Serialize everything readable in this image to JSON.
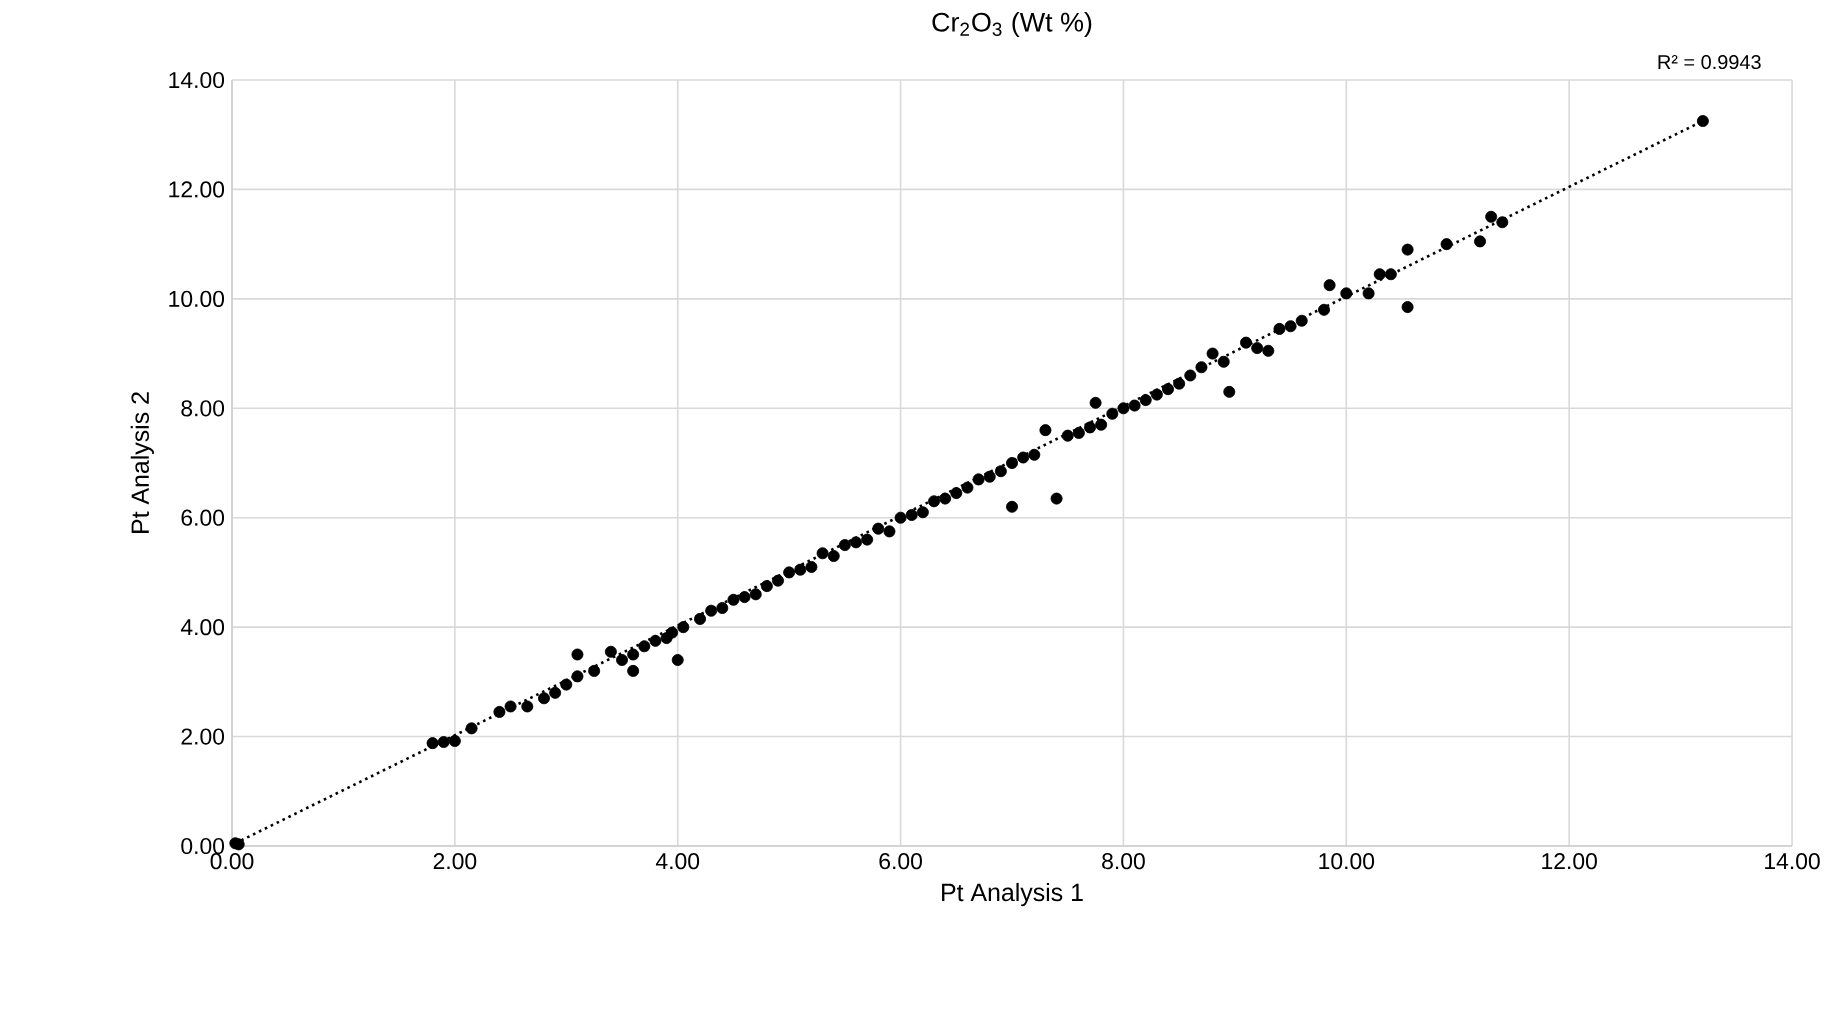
{
  "chart_data": {
    "type": "scatter",
    "title": "Cr$_{2}$O$_{3}$  (Wt %)",
    "xlabel": "Pt Analysis 1",
    "ylabel": "Pt Analysis 2",
    "annotations": [
      "R² = 0.9943"
    ],
    "xlim": [
      0,
      14
    ],
    "ylim": [
      0,
      14
    ],
    "xticks": [
      {
        "value": 0,
        "label": "0.00"
      },
      {
        "value": 2,
        "label": "2.00"
      },
      {
        "value": 4,
        "label": "4.00"
      },
      {
        "value": 6,
        "label": "6.00"
      },
      {
        "value": 8,
        "label": "8.00"
      },
      {
        "value": 10,
        "label": "10.00"
      },
      {
        "value": 12,
        "label": "12.00"
      },
      {
        "value": 14,
        "label": "14.00"
      }
    ],
    "yticks": [
      {
        "value": 0,
        "label": "0.00"
      },
      {
        "value": 2,
        "label": "2.00"
      },
      {
        "value": 4,
        "label": "4.00"
      },
      {
        "value": 6,
        "label": "6.00"
      },
      {
        "value": 8,
        "label": "8.00"
      },
      {
        "value": 10,
        "label": "10.00"
      },
      {
        "value": 12,
        "label": "12.00"
      },
      {
        "value": 14,
        "label": "14.00"
      }
    ],
    "grid": true,
    "series": [
      {
        "color": "#000000",
        "marker": "circle",
        "x": [
          0.03,
          0.06,
          1.8,
          1.9,
          2.0,
          2.15,
          2.4,
          2.5,
          2.65,
          2.8,
          2.9,
          3.0,
          3.1,
          3.1,
          3.25,
          3.4,
          3.5,
          3.6,
          3.6,
          3.7,
          3.8,
          3.9,
          3.95,
          4.0,
          4.05,
          4.2,
          4.3,
          4.4,
          4.5,
          4.6,
          4.7,
          4.8,
          4.9,
          5.0,
          5.1,
          5.2,
          5.3,
          5.4,
          5.5,
          5.6,
          5.7,
          5.8,
          5.9,
          6.0,
          6.1,
          6.2,
          6.3,
          6.4,
          6.5,
          6.6,
          6.7,
          6.8,
          6.9,
          7.0,
          7.0,
          7.1,
          7.2,
          7.3,
          7.4,
          7.5,
          7.6,
          7.7,
          7.75,
          7.8,
          7.9,
          8.0,
          8.1,
          8.2,
          8.3,
          8.4,
          8.5,
          8.6,
          8.7,
          8.8,
          8.9,
          8.95,
          9.1,
          9.2,
          9.3,
          9.4,
          9.5,
          9.6,
          9.8,
          9.85,
          10.0,
          10.2,
          10.3,
          10.4,
          10.55,
          10.55,
          10.9,
          11.2,
          11.3,
          11.4,
          13.2
        ],
        "values": [
          0.05,
          0.03,
          1.88,
          1.9,
          1.92,
          2.15,
          2.45,
          2.55,
          2.55,
          2.7,
          2.8,
          2.95,
          3.1,
          3.5,
          3.2,
          3.55,
          3.4,
          3.5,
          3.2,
          3.65,
          3.75,
          3.8,
          3.9,
          3.4,
          4.0,
          4.15,
          4.3,
          4.35,
          4.5,
          4.55,
          4.6,
          4.75,
          4.85,
          5.0,
          5.05,
          5.1,
          5.35,
          5.3,
          5.5,
          5.55,
          5.6,
          5.8,
          5.75,
          6.0,
          6.05,
          6.1,
          6.3,
          6.35,
          6.45,
          6.55,
          6.7,
          6.75,
          6.85,
          7.0,
          6.2,
          7.1,
          7.15,
          7.6,
          6.35,
          7.5,
          7.55,
          7.65,
          8.1,
          7.7,
          7.9,
          8.0,
          8.05,
          8.15,
          8.25,
          8.35,
          8.45,
          8.6,
          8.75,
          9.0,
          8.85,
          8.3,
          9.2,
          9.1,
          9.05,
          9.45,
          9.5,
          9.6,
          9.8,
          10.25,
          10.1,
          10.1,
          10.45,
          10.45,
          9.85,
          10.9,
          11.0,
          11.05,
          11.5,
          11.4,
          13.25
        ]
      },
      {
        "type": "line",
        "color": "#000000",
        "line_style": "dotted",
        "marker": "none",
        "x": [
          0.03,
          13.2
        ],
        "values": [
          0.05,
          13.25
        ]
      }
    ]
  }
}
